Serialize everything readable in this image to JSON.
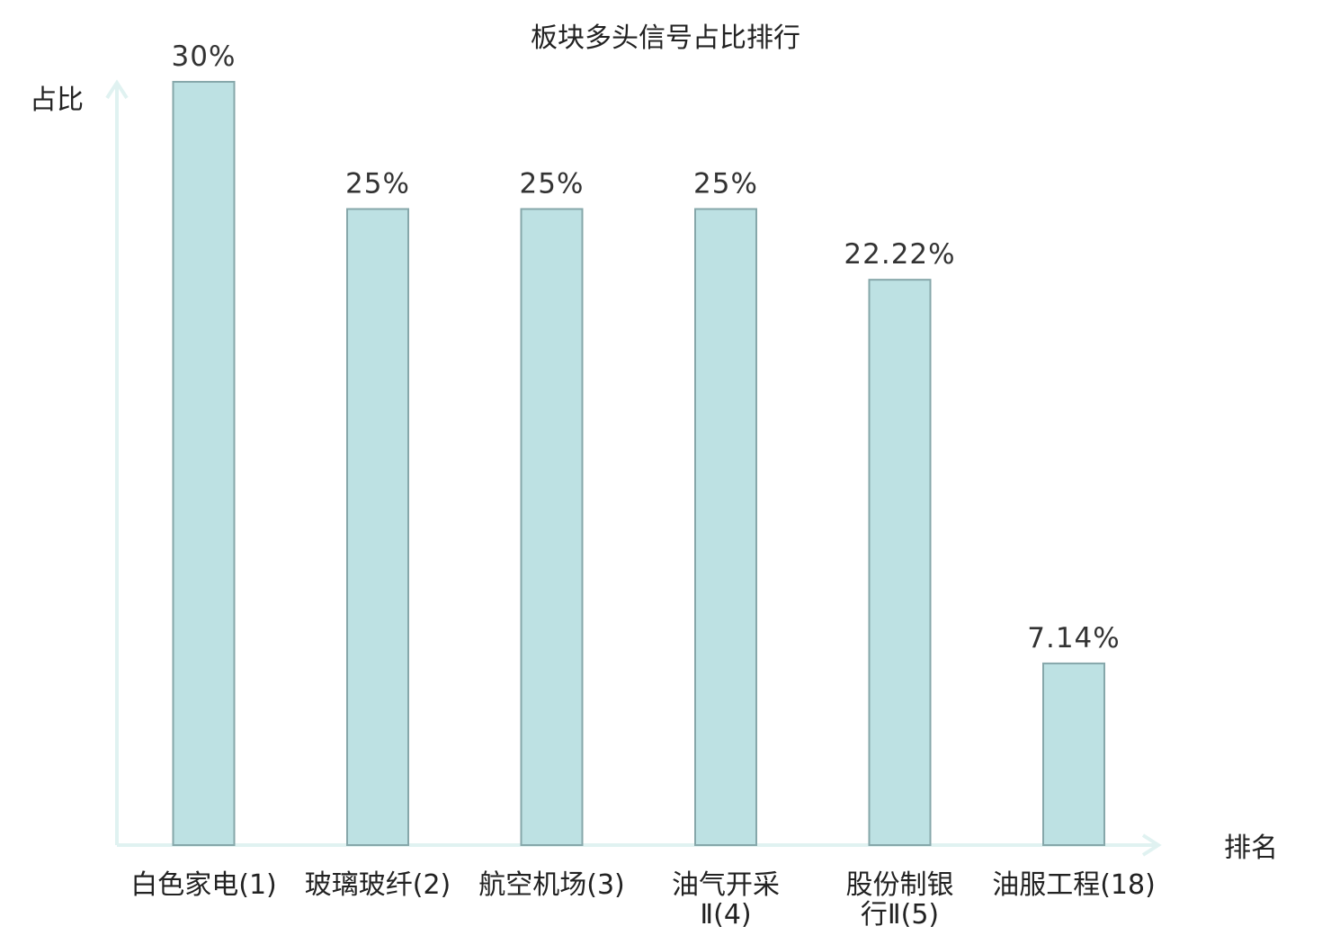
{
  "chart_data": {
    "type": "bar",
    "title": "板块多头信号占比排行",
    "ylabel": "占比",
    "xlabel": "排名",
    "categories": [
      [
        "白色家电(1)"
      ],
      [
        "玻璃玻纤(2)"
      ],
      [
        "航空机场(3)"
      ],
      [
        "油气开采",
        "Ⅱ(4)"
      ],
      [
        "股份制银",
        "行Ⅱ(5)"
      ],
      [
        "油服工程(18)"
      ]
    ],
    "values": [
      30,
      25,
      25,
      25,
      22.22,
      7.14
    ],
    "value_labels": [
      "30%",
      "25%",
      "25%",
      "25%",
      "22.22%",
      "7.14%"
    ],
    "highlight_index": 5,
    "ylim": [
      0,
      30
    ],
    "grid": false,
    "colors": {
      "bar_fill": "#bde1e3",
      "bar_stroke": "#86a7aa",
      "axis": "#e0f2f1",
      "highlight_text": "#e01010",
      "text": "#222222"
    }
  }
}
